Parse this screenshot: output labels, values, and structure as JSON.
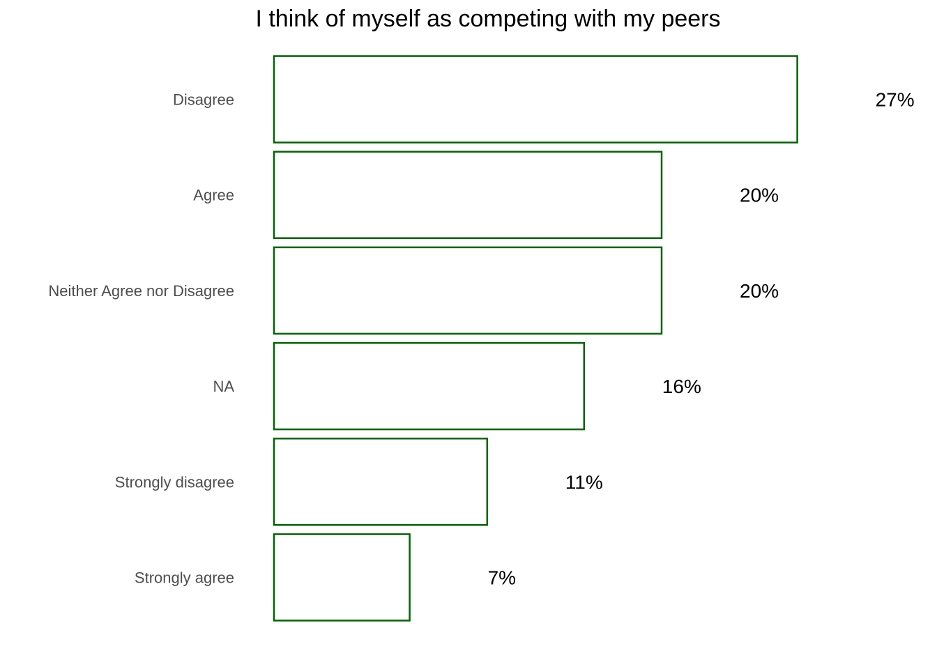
{
  "chart_data": {
    "type": "bar",
    "orientation": "horizontal",
    "title": "I think of myself as competing with my peers",
    "categories": [
      "Disagree",
      "Agree",
      "Neither Agree nor Disagree",
      "NA",
      "Strongly disagree",
      "Strongly agree"
    ],
    "values": [
      27,
      20,
      20,
      16,
      11,
      7
    ],
    "value_labels": [
      "27%",
      "20%",
      "20%",
      "16%",
      "11%",
      "7%"
    ],
    "xlabel": "",
    "ylabel": "",
    "grid": false,
    "legend": "none",
    "bar_fill": "#ffffff",
    "bar_stroke": "#006400"
  }
}
